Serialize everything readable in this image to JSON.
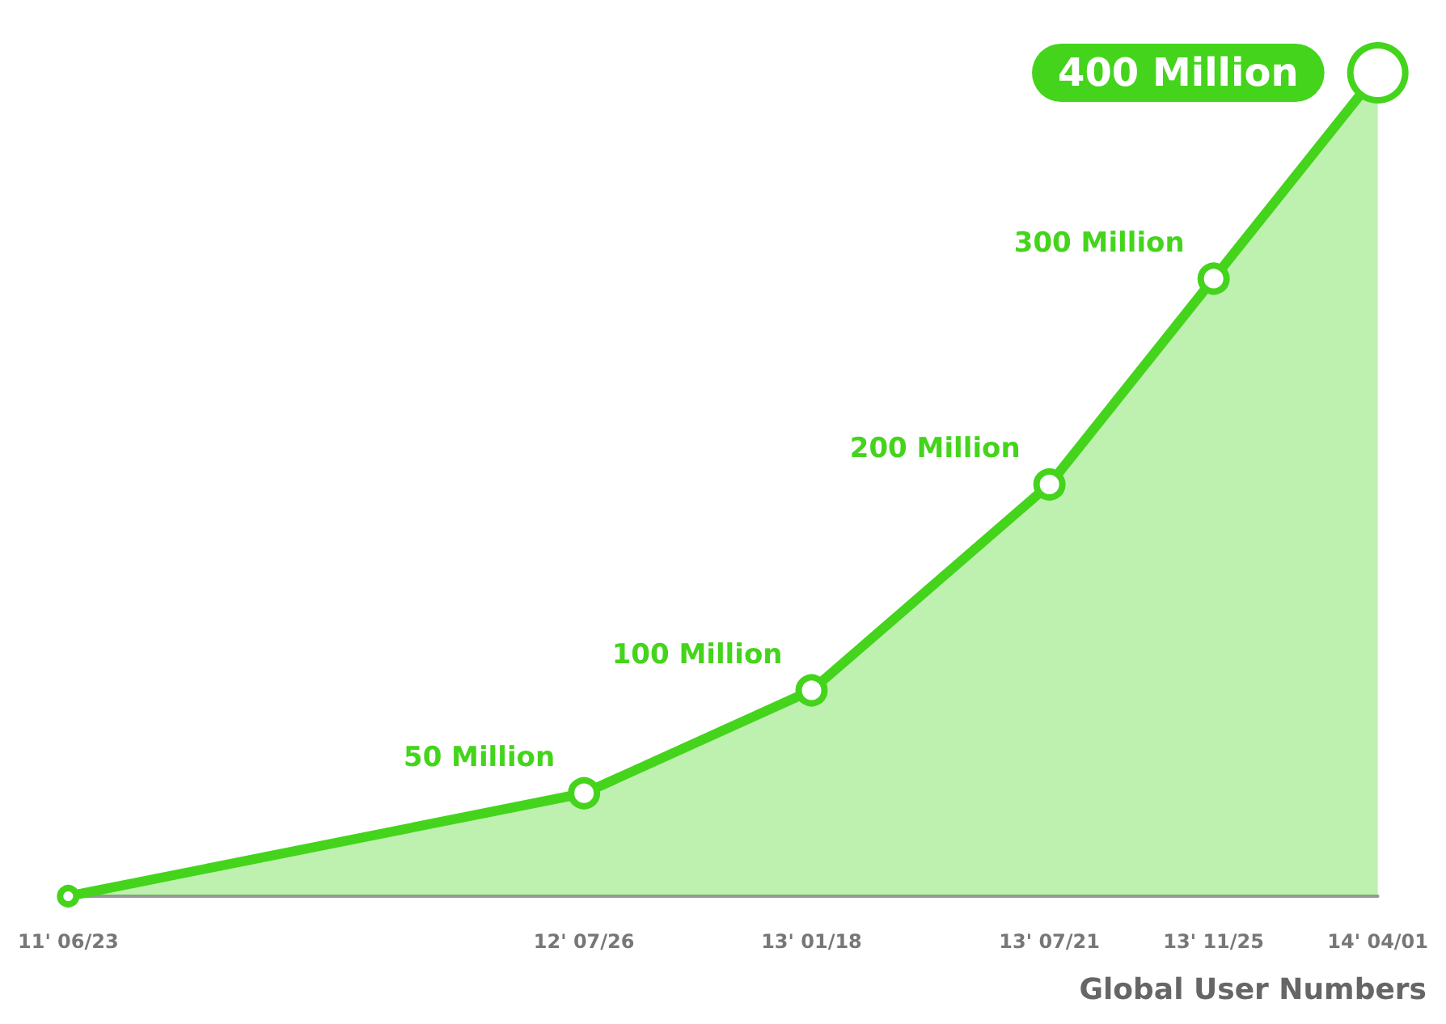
{
  "chart_data": {
    "type": "area",
    "x": [
      "2011-06-23",
      "2012-07-26",
      "2013-01-18",
      "2013-07-21",
      "2013-11-25",
      "2014-04-01"
    ],
    "series": [
      {
        "color": "#44d41c",
        "values": [
          0,
          50,
          100,
          200,
          300,
          400
        ],
        "value_labels": [
          null,
          "50 Million",
          "100 Million",
          "200 Million",
          "300 Million",
          "400 Million"
        ]
      }
    ],
    "xlim": [
      "2011-06-23",
      "2014-04-01"
    ],
    "xticks": [
      {
        "value": "2011-06-23",
        "label": "11' 06/23"
      },
      {
        "value": "2012-07-26",
        "label": "12' 07/26"
      },
      {
        "value": "2013-01-18",
        "label": "13' 01/18"
      },
      {
        "value": "2013-07-21",
        "label": "13' 07/21"
      },
      {
        "value": "2013-11-25",
        "label": "13' 11/25"
      },
      {
        "value": "2014-04-01",
        "label": "14' 04/01"
      }
    ],
    "tick_labels": "x",
    "grid": false,
    "marker": "circle",
    "line_style": "solid",
    "annotations": [
      "Global User Numbers"
    ]
  }
}
